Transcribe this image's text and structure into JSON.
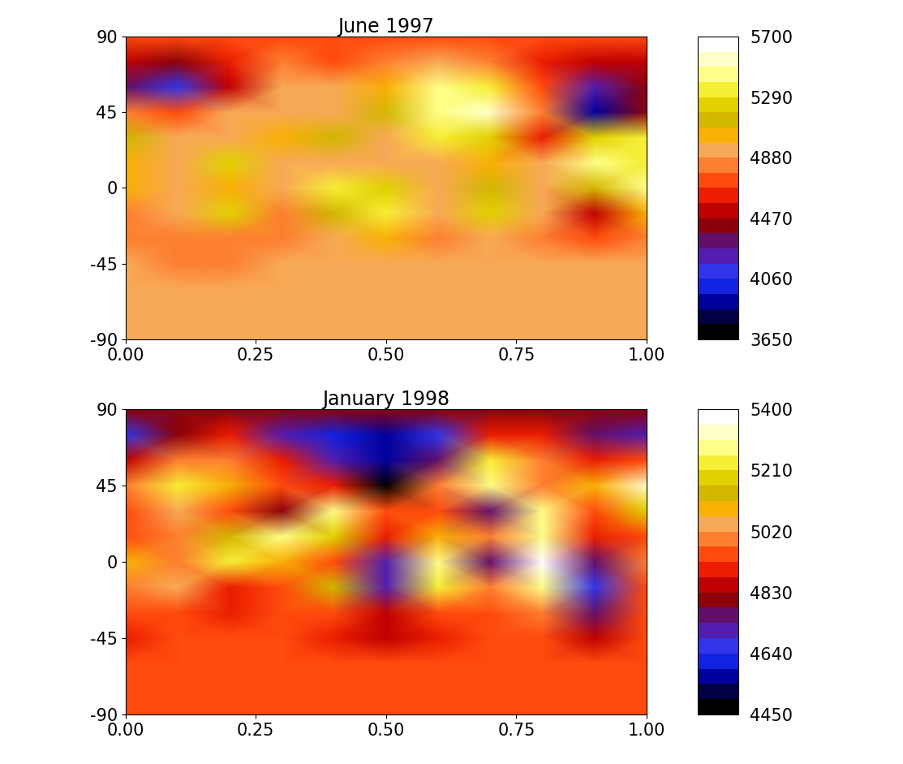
{
  "chart_data": [
    {
      "type": "heatmap",
      "title": "June 1997",
      "x": [
        0.0,
        0.1,
        0.2,
        0.3,
        0.4,
        0.5,
        0.6,
        0.7,
        0.8,
        0.9,
        1.0
      ],
      "y": [
        90,
        75,
        60,
        45,
        30,
        15,
        0,
        -15,
        -30,
        -45,
        -60,
        -75,
        -90
      ],
      "values": [
        [
          4700,
          4700,
          4700,
          4700,
          4700,
          4700,
          4700,
          4700,
          4700,
          4700,
          4700
        ],
        [
          4500,
          4400,
          4600,
          4800,
          4750,
          4800,
          4900,
          4800,
          4600,
          4500,
          4500
        ],
        [
          4300,
          4100,
          4500,
          4880,
          4880,
          5000,
          5400,
          5300,
          4700,
          4200,
          4400
        ],
        [
          4800,
          4750,
          4880,
          4950,
          4880,
          5100,
          5450,
          5500,
          4800,
          3950,
          4400
        ],
        [
          5100,
          4880,
          4880,
          5050,
          5150,
          4950,
          5300,
          5200,
          4600,
          5200,
          5300
        ],
        [
          5050,
          4880,
          5200,
          4880,
          4950,
          4880,
          4950,
          5000,
          4880,
          5450,
          5350
        ],
        [
          5000,
          4880,
          5000,
          4900,
          5300,
          5200,
          4880,
          5100,
          4900,
          5100,
          5400
        ],
        [
          4800,
          4880,
          5200,
          4800,
          5100,
          5350,
          4950,
          5250,
          4880,
          4550,
          5000
        ],
        [
          4800,
          4800,
          4800,
          4800,
          4880,
          5050,
          4850,
          4880,
          4800,
          4700,
          4800
        ],
        [
          4880,
          4820,
          4820,
          4880,
          4880,
          4880,
          4880,
          4880,
          4880,
          4880,
          4880
        ],
        [
          4880,
          4880,
          4880,
          4880,
          4880,
          4880,
          4880,
          4880,
          4880,
          4880,
          4880
        ],
        [
          4880,
          4880,
          4880,
          4880,
          4880,
          4880,
          4880,
          4880,
          4880,
          4880,
          4880
        ],
        [
          4880,
          4880,
          4880,
          4880,
          4880,
          4880,
          4880,
          4880,
          4880,
          4880,
          4880
        ]
      ],
      "xlim": [
        0,
        1
      ],
      "ylim": [
        -90,
        90
      ],
      "xticks": [
        {
          "value": 0,
          "label": "0.00"
        },
        {
          "value": 0.25,
          "label": "0.25"
        },
        {
          "value": 0.5,
          "label": "0.50"
        },
        {
          "value": 0.75,
          "label": "0.75"
        },
        {
          "value": 1,
          "label": "1.00"
        }
      ],
      "yticks": [
        -90,
        -45,
        0,
        45,
        90
      ],
      "colorbar_range": [
        3650,
        5700
      ],
      "colorbar_ticks": [
        3650,
        4060,
        4470,
        4880,
        5290,
        5700
      ]
    },
    {
      "type": "heatmap",
      "title": "January 1998",
      "x": [
        0.0,
        0.1,
        0.2,
        0.3,
        0.4,
        0.5,
        0.6,
        0.7,
        0.8,
        0.9,
        1.0
      ],
      "y": [
        90,
        75,
        60,
        45,
        30,
        15,
        0,
        -15,
        -30,
        -45,
        -60,
        -75,
        -90
      ],
      "values": [
        [
          4800,
          4800,
          4800,
          4800,
          4800,
          4800,
          4800,
          4800,
          4800,
          4800,
          4800
        ],
        [
          4650,
          4800,
          4900,
          4700,
          4600,
          4550,
          4650,
          4900,
          4900,
          4750,
          4700
        ],
        [
          4850,
          5000,
          5000,
          4900,
          4700,
          4550,
          4750,
          5250,
          5000,
          4900,
          4950
        ],
        [
          5000,
          5250,
          5100,
          4950,
          4900,
          4450,
          5000,
          5300,
          5000,
          5100,
          5350
        ],
        [
          4950,
          5020,
          4950,
          4800,
          5300,
          4950,
          4950,
          4750,
          5300,
          4950,
          5200
        ],
        [
          4950,
          5000,
          5150,
          5300,
          5200,
          4900,
          5100,
          5000,
          5300,
          4900,
          4950
        ],
        [
          5100,
          5000,
          5250,
          5100,
          4950,
          4700,
          5300,
          4750,
          5400,
          4750,
          5000
        ],
        [
          5000,
          5050,
          4900,
          4950,
          5150,
          4700,
          5250,
          5000,
          5300,
          4650,
          4950
        ],
        [
          4950,
          4950,
          4900,
          4950,
          4950,
          4850,
          4950,
          4950,
          5000,
          4750,
          4950
        ],
        [
          4900,
          4950,
          4950,
          4950,
          4900,
          4830,
          4900,
          4950,
          4950,
          4850,
          4950
        ],
        [
          4960,
          4960,
          4960,
          4960,
          4960,
          4960,
          4960,
          4960,
          4960,
          4960,
          4960
        ],
        [
          4960,
          4960,
          4960,
          4960,
          4960,
          4960,
          4960,
          4960,
          4960,
          4960,
          4960
        ],
        [
          4960,
          4960,
          4960,
          4960,
          4960,
          4960,
          4960,
          4960,
          4960,
          4960,
          4960
        ]
      ],
      "xlim": [
        0,
        1
      ],
      "ylim": [
        -90,
        90
      ],
      "xticks": [
        {
          "value": 0,
          "label": "0.00"
        },
        {
          "value": 0.25,
          "label": "0.25"
        },
        {
          "value": 0.5,
          "label": "0.50"
        },
        {
          "value": 0.75,
          "label": "0.75"
        },
        {
          "value": 1,
          "label": "1.00"
        }
      ],
      "yticks": [
        -90,
        -45,
        0,
        45,
        90
      ],
      "colorbar_range": [
        4450,
        5400
      ],
      "colorbar_ticks": [
        4450,
        4640,
        4830,
        5020,
        5210,
        5400
      ]
    }
  ]
}
